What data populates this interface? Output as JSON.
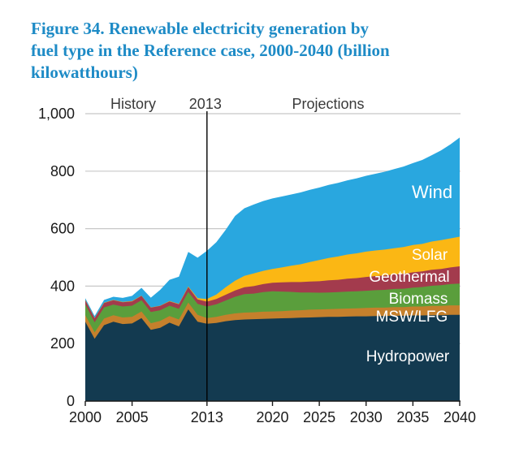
{
  "title": "Figure 34. Renewable electricity generation by\nfuel type in the Reference case, 2000-2040 (billion\nkilowatthours)",
  "title_color": "#1e8bc6",
  "chart_data": {
    "type": "area",
    "stacked": true,
    "x_range": [
      2000,
      2040
    ],
    "ylim": [
      0,
      1000
    ],
    "grid": "horizontal-light-gray",
    "unit": "billion kilowatthours",
    "years": [
      2000,
      2001,
      2002,
      2003,
      2004,
      2005,
      2006,
      2007,
      2008,
      2009,
      2010,
      2011,
      2012,
      2013,
      2014,
      2015,
      2016,
      2017,
      2018,
      2019,
      2020,
      2021,
      2022,
      2023,
      2024,
      2025,
      2026,
      2027,
      2028,
      2029,
      2030,
      2031,
      2032,
      2033,
      2034,
      2035,
      2036,
      2037,
      2038,
      2039,
      2040
    ],
    "series": [
      {
        "name": "hydropower",
        "label": "Hydropower",
        "color": "#133a50",
        "values": [
          276,
          217,
          264,
          276,
          268,
          270,
          289,
          248,
          255,
          273,
          260,
          319,
          276,
          269,
          272,
          278,
          282,
          284,
          285,
          286,
          287,
          288,
          289,
          290,
          291,
          292,
          293,
          293,
          294,
          295,
          295,
          296,
          296,
          297,
          297,
          298,
          298,
          299,
          299,
          300,
          300
        ]
      },
      {
        "name": "msw-lfg",
        "label": "MSW/LFG",
        "color": "#c5802c",
        "values": [
          23,
          22,
          23,
          23,
          23,
          23,
          23,
          23,
          24,
          23,
          24,
          24,
          24,
          20,
          21,
          22,
          23,
          24,
          24,
          25,
          25,
          25,
          26,
          26,
          27,
          27,
          27,
          28,
          28,
          28,
          29,
          29,
          29,
          30,
          30,
          31,
          31,
          32,
          32,
          33,
          33
        ]
      },
      {
        "name": "biomass",
        "label": "Biomass",
        "color": "#5a9e3c",
        "values": [
          38,
          35,
          39,
          37,
          38,
          39,
          39,
          39,
          37,
          36,
          37,
          37,
          38,
          40,
          44,
          50,
          58,
          64,
          65,
          68,
          70,
          68,
          65,
          62,
          60,
          58,
          58,
          58,
          59,
          59,
          60,
          61,
          62,
          63,
          64,
          66,
          68,
          70,
          72,
          74,
          76
        ]
      },
      {
        "name": "geothermal",
        "label": "Geothermal",
        "color": "#a33b4d",
        "values": [
          14,
          14,
          15,
          15,
          15,
          15,
          15,
          15,
          15,
          15,
          16,
          17,
          16,
          17,
          18,
          20,
          22,
          24,
          26,
          28,
          30,
          32,
          34,
          36,
          38,
          40,
          42,
          43,
          45,
          46,
          48,
          49,
          50,
          51,
          52,
          53,
          54,
          56,
          57,
          58,
          60
        ]
      },
      {
        "name": "solar",
        "label": "Solar",
        "color": "#fbb714",
        "values": [
          1,
          1,
          1,
          1,
          1,
          1,
          1,
          1,
          1,
          1,
          1,
          2,
          4,
          9,
          16,
          26,
          34,
          40,
          44,
          46,
          48,
          52,
          57,
          62,
          68,
          74,
          78,
          81,
          84,
          86,
          88,
          89,
          90,
          91,
          93,
          95,
          96,
          98,
          100,
          101,
          103
        ]
      },
      {
        "name": "wind",
        "label": "Wind",
        "color": "#29a7df",
        "values": [
          6,
          7,
          10,
          11,
          14,
          18,
          27,
          34,
          55,
          74,
          95,
          120,
          141,
          168,
          182,
          200,
          225,
          235,
          240,
          243,
          245,
          247,
          248,
          250,
          251,
          252,
          254,
          256,
          258,
          261,
          264,
          267,
          271,
          275,
          280,
          285,
          292,
          300,
          312,
          327,
          345
        ]
      }
    ],
    "y_ticks": [
      {
        "label": "0",
        "value": 0
      },
      {
        "label": "200",
        "value": 200
      },
      {
        "label": "400",
        "value": 400
      },
      {
        "label": "600",
        "value": 600
      },
      {
        "label": "800",
        "value": 800
      },
      {
        "label": "1,000",
        "value": 1000
      }
    ],
    "x_ticks": [
      {
        "label": "2000",
        "year": 2000
      },
      {
        "label": "2005",
        "year": 2005
      },
      {
        "label": "2013",
        "year": 2013
      },
      {
        "label": "2020",
        "year": 2020
      },
      {
        "label": "2025",
        "year": 2025
      },
      {
        "label": "2030",
        "year": 2030
      },
      {
        "label": "2035",
        "year": 2035
      },
      {
        "label": "2040",
        "year": 2040
      }
    ],
    "annotations": {
      "history": "History",
      "divider": "2013",
      "projections": "Projections",
      "divider_year": 2013
    },
    "colors": {
      "gridline": "#c8c8c8",
      "axis": "#1a1a1a",
      "divider": "#000000",
      "band_label_text": "#ffffff"
    }
  }
}
